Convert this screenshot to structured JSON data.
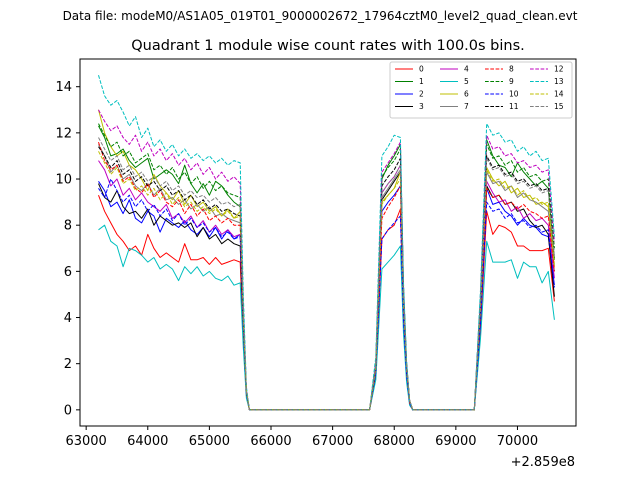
{
  "chart_data": {
    "type": "line",
    "suptitle": "Data file: modeM0/AS1A05_019T01_9000002672_17964cztM0_level2_quad_clean.evt",
    "title": "Quadrant 1 module wise count rates with 100.0s bins.",
    "xlabel": "",
    "ylabel": "",
    "offset_label": "+2.859e8",
    "xlim": [
      62900,
      70950
    ],
    "ylim": [
      -0.7,
      15.2
    ],
    "x_ticks": [
      63000,
      64000,
      65000,
      66000,
      67000,
      68000,
      69000,
      70000
    ],
    "x_tick_labels": [
      "63000",
      "64000",
      "65000",
      "66000",
      "67000",
      "68000",
      "69000",
      "70000"
    ],
    "y_ticks": [
      0,
      2,
      4,
      6,
      8,
      10,
      12,
      14
    ],
    "y_tick_labels": [
      "0",
      "2",
      "4",
      "6",
      "8",
      "10",
      "12",
      "14"
    ],
    "legend": "top-right",
    "x_segments": [
      [
        63200,
        63300,
        63400,
        63500,
        63600,
        63700,
        63800,
        63900,
        64000,
        64100,
        64200,
        64300,
        64400,
        64500,
        64600,
        64700,
        64800,
        64900,
        65000,
        65100,
        65200,
        65300,
        65400,
        65500,
        65550,
        65600,
        65650,
        65700,
        67600,
        67700,
        67800,
        67900,
        68000,
        68100,
        68150,
        68200,
        68250,
        68300,
        69300,
        69400,
        69500,
        69600,
        69700,
        69800,
        69900,
        70000,
        70100,
        70200,
        70300,
        70400,
        70500,
        70600
      ]
    ],
    "series": [
      {
        "name": "0",
        "color": "#ff0000",
        "dash": "solid",
        "values": [
          9.3,
          8.6,
          8.1,
          7.6,
          7.3,
          6.9,
          7.1,
          6.7,
          7.6,
          7.0,
          6.6,
          6.8,
          6.6,
          6.4,
          7.2,
          6.5,
          6.5,
          6.6,
          6.3,
          6.6,
          6.3,
          6.4,
          6.5,
          6.4,
          3.0,
          0.6,
          0.0,
          0.0,
          0.0,
          1.5,
          7.4,
          7.8,
          8.0,
          8.7,
          4.0,
          1.5,
          0.3,
          0.0,
          0.0,
          3.5,
          8.6,
          7.6,
          8.0,
          7.9,
          7.7,
          7.1,
          7.1,
          6.9,
          6.9,
          6.9,
          7.0,
          4.7
        ]
      },
      {
        "name": "1",
        "color": "#008000",
        "dash": "solid",
        "values": [
          12.3,
          11.8,
          11.0,
          11.1,
          11.3,
          10.8,
          10.5,
          10.7,
          10.9,
          10.0,
          10.2,
          10.4,
          10.2,
          9.8,
          10.6,
          9.8,
          9.4,
          9.8,
          9.3,
          9.9,
          9.7,
          9.3,
          9.0,
          8.8,
          4.2,
          0.8,
          0.0,
          0.0,
          0.0,
          2.0,
          10.0,
          10.6,
          11.0,
          11.5,
          5.3,
          2.0,
          0.4,
          0.0,
          0.0,
          4.8,
          11.7,
          11.0,
          10.6,
          10.5,
          10.1,
          10.7,
          10.3,
          10.0,
          9.7,
          9.9,
          9.6,
          6.5
        ]
      },
      {
        "name": "2",
        "color": "#0000ff",
        "dash": "solid",
        "values": [
          9.9,
          9.5,
          8.8,
          9.0,
          8.5,
          9.1,
          8.3,
          8.1,
          8.6,
          8.4,
          7.7,
          8.3,
          8.1,
          7.9,
          8.2,
          7.8,
          7.6,
          7.9,
          7.5,
          7.9,
          7.4,
          7.8,
          7.4,
          7.6,
          3.6,
          0.7,
          0.0,
          0.0,
          0.0,
          1.7,
          8.6,
          9.0,
          9.3,
          9.7,
          4.5,
          1.7,
          0.3,
          0.0,
          0.0,
          4.0,
          9.6,
          8.9,
          9.0,
          8.6,
          8.4,
          8.0,
          8.3,
          8.0,
          7.9,
          7.6,
          7.5,
          5.4
        ]
      },
      {
        "name": "3",
        "color": "#000000",
        "dash": "solid",
        "values": [
          9.8,
          9.2,
          9.0,
          9.5,
          8.8,
          8.5,
          8.6,
          8.3,
          8.7,
          8.0,
          8.4,
          8.2,
          8.0,
          8.1,
          7.9,
          8.1,
          7.5,
          7.9,
          7.4,
          7.6,
          7.2,
          7.4,
          7.2,
          7.1,
          3.4,
          0.7,
          0.0,
          0.0,
          0.0,
          1.6,
          9.1,
          9.5,
          9.9,
          10.3,
          4.8,
          1.8,
          0.4,
          0.0,
          0.0,
          4.1,
          9.7,
          9.2,
          9.3,
          8.9,
          9.0,
          8.6,
          8.7,
          8.2,
          7.9,
          8.0,
          7.6,
          4.9
        ]
      },
      {
        "name": "4",
        "color": "#bf00bf",
        "dash": "solid",
        "values": [
          10.8,
          10.4,
          9.7,
          10.0,
          9.3,
          9.6,
          9.1,
          9.4,
          9.0,
          8.8,
          8.6,
          8.9,
          8.3,
          8.5,
          8.1,
          8.4,
          7.9,
          8.2,
          7.7,
          8.0,
          7.6,
          7.8,
          7.5,
          7.6,
          3.6,
          0.7,
          0.0,
          0.0,
          0.0,
          1.8,
          9.4,
          9.8,
          10.1,
          10.6,
          4.9,
          1.9,
          0.4,
          0.0,
          0.0,
          4.3,
          9.9,
          9.4,
          9.0,
          9.1,
          8.6,
          8.8,
          8.3,
          8.5,
          8.2,
          8.3,
          8.0,
          5.7
        ]
      },
      {
        "name": "5",
        "color": "#00bfbf",
        "dash": "solid",
        "values": [
          7.8,
          8.0,
          7.3,
          7.1,
          6.2,
          7.0,
          6.9,
          6.7,
          6.4,
          6.6,
          6.1,
          6.3,
          6.1,
          5.6,
          6.2,
          5.9,
          6.2,
          5.8,
          6.0,
          5.7,
          5.6,
          5.8,
          5.4,
          5.5,
          2.7,
          0.5,
          0.0,
          0.0,
          0.0,
          1.3,
          6.1,
          6.4,
          6.7,
          7.1,
          3.3,
          1.2,
          0.2,
          0.0,
          0.0,
          3.1,
          7.3,
          6.4,
          6.4,
          6.4,
          6.5,
          5.7,
          6.4,
          6.2,
          6.2,
          5.5,
          6.0,
          3.9
        ]
      },
      {
        "name": "6",
        "color": "#bfbf00",
        "dash": "solid",
        "values": [
          13.0,
          12.0,
          11.4,
          11.0,
          11.2,
          10.6,
          10.4,
          10.0,
          9.5,
          10.2,
          9.7,
          9.4,
          9.1,
          9.5,
          8.9,
          9.3,
          8.8,
          9.0,
          8.6,
          8.8,
          8.4,
          8.7,
          8.3,
          8.6,
          4.0,
          0.8,
          0.0,
          0.0,
          0.0,
          1.9,
          9.0,
          9.3,
          9.6,
          10.3,
          4.7,
          1.8,
          0.4,
          0.0,
          0.0,
          4.6,
          10.5,
          10.0,
          9.7,
          9.9,
          9.4,
          9.6,
          9.2,
          9.3,
          8.9,
          9.0,
          8.8,
          6.2
        ]
      },
      {
        "name": "7",
        "color": "#808080",
        "dash": "solid",
        "values": [
          11.5,
          11.0,
          10.3,
          10.6,
          10.0,
          10.2,
          9.7,
          9.5,
          9.8,
          9.3,
          9.6,
          9.1,
          9.2,
          8.9,
          9.1,
          8.7,
          8.9,
          8.6,
          8.8,
          8.4,
          8.5,
          8.3,
          8.2,
          8.1,
          3.8,
          0.8,
          0.0,
          0.0,
          0.0,
          1.8,
          9.2,
          9.6,
          10.0,
          10.4,
          4.8,
          1.8,
          0.4,
          0.0,
          0.0,
          4.4,
          10.3,
          9.8,
          9.9,
          9.5,
          9.7,
          9.2,
          9.4,
          9.1,
          9.0,
          8.8,
          8.6,
          6.0
        ]
      },
      {
        "name": "8",
        "color": "#ff0000",
        "dash": "dashed",
        "values": [
          11.6,
          10.8,
          10.4,
          10.6,
          9.9,
          10.1,
          9.6,
          9.4,
          9.8,
          9.2,
          9.5,
          9.0,
          8.8,
          9.1,
          8.5,
          8.9,
          8.4,
          8.7,
          8.2,
          8.4,
          8.1,
          8.3,
          8.0,
          8.0,
          3.8,
          0.8,
          0.0,
          0.0,
          0.0,
          1.7,
          8.3,
          8.8,
          9.2,
          9.7,
          4.5,
          1.7,
          0.3,
          0.0,
          0.0,
          4.2,
          9.6,
          9.2,
          9.3,
          8.9,
          9.0,
          8.7,
          8.9,
          8.6,
          8.5,
          8.3,
          8.4,
          6.0
        ]
      },
      {
        "name": "9",
        "color": "#008000",
        "dash": "dashed",
        "values": [
          12.4,
          11.9,
          11.4,
          11.6,
          11.0,
          11.2,
          10.7,
          10.9,
          11.1,
          10.4,
          10.6,
          10.2,
          10.5,
          10.0,
          10.3,
          9.8,
          10.1,
          9.6,
          9.9,
          9.5,
          9.7,
          9.4,
          9.3,
          9.2,
          4.3,
          0.8,
          0.0,
          0.0,
          0.0,
          2.0,
          10.1,
          10.5,
          10.8,
          11.3,
          5.2,
          2.0,
          0.4,
          0.0,
          0.0,
          4.9,
          11.5,
          10.9,
          11.0,
          10.6,
          10.8,
          10.3,
          10.5,
          10.1,
          10.2,
          9.9,
          10.0,
          7.0
        ]
      },
      {
        "name": "10",
        "color": "#0000ff",
        "dash": "dashed",
        "values": [
          9.6,
          9.2,
          10.0,
          9.5,
          9.0,
          9.3,
          8.8,
          9.1,
          8.6,
          8.9,
          8.4,
          8.7,
          8.2,
          8.5,
          8.0,
          8.3,
          7.9,
          8.1,
          7.7,
          7.9,
          7.5,
          7.7,
          7.4,
          7.5,
          3.5,
          0.7,
          0.0,
          0.0,
          0.0,
          1.6,
          7.4,
          7.8,
          8.1,
          8.4,
          3.9,
          1.5,
          0.3,
          0.0,
          0.0,
          3.8,
          9.0,
          8.6,
          8.7,
          8.3,
          8.5,
          8.1,
          8.2,
          7.9,
          8.0,
          7.7,
          7.8,
          5.3
        ]
      },
      {
        "name": "11",
        "color": "#000000",
        "dash": "dashed",
        "values": [
          11.4,
          11.0,
          10.5,
          10.8,
          10.2,
          10.4,
          9.9,
          10.1,
          9.7,
          9.9,
          9.5,
          9.7,
          9.3,
          9.5,
          9.1,
          9.3,
          8.9,
          9.1,
          8.7,
          8.9,
          8.6,
          8.7,
          8.5,
          8.4,
          3.9,
          0.8,
          0.0,
          0.0,
          0.0,
          1.9,
          9.7,
          10.1,
          10.4,
          10.9,
          5.0,
          1.9,
          0.4,
          0.0,
          0.0,
          4.7,
          11.0,
          10.5,
          10.6,
          10.2,
          10.3,
          9.9,
          10.0,
          9.7,
          9.8,
          9.5,
          9.6,
          6.6
        ]
      },
      {
        "name": "12",
        "color": "#bf00bf",
        "dash": "dashed",
        "values": [
          13.0,
          12.5,
          12.1,
          12.3,
          11.8,
          11.5,
          11.9,
          11.2,
          11.6,
          11.0,
          11.3,
          10.8,
          11.1,
          10.6,
          10.9,
          10.4,
          10.7,
          10.2,
          10.5,
          10.0,
          10.3,
          9.9,
          10.1,
          9.8,
          4.6,
          0.9,
          0.0,
          0.0,
          0.0,
          2.1,
          10.3,
          10.7,
          11.1,
          11.6,
          5.4,
          2.0,
          0.4,
          0.0,
          0.0,
          5.0,
          11.9,
          11.3,
          11.4,
          11.0,
          11.1,
          10.7,
          10.8,
          10.5,
          10.6,
          10.3,
          10.4,
          7.3
        ]
      },
      {
        "name": "13",
        "color": "#00bfbf",
        "dash": "dashed",
        "values": [
          14.5,
          13.6,
          13.2,
          13.4,
          12.9,
          12.3,
          12.7,
          11.8,
          12.2,
          11.4,
          11.7,
          11.2,
          11.5,
          11.0,
          11.3,
          10.9,
          11.1,
          10.8,
          11.0,
          10.7,
          10.9,
          10.6,
          10.8,
          10.7,
          5.0,
          1.0,
          0.0,
          0.0,
          0.0,
          2.3,
          11.0,
          11.4,
          11.9,
          11.8,
          5.5,
          2.1,
          0.4,
          0.0,
          0.0,
          5.2,
          12.4,
          11.9,
          12.0,
          11.6,
          11.7,
          11.2,
          11.4,
          11.0,
          11.2,
          10.8,
          10.9,
          7.5
        ]
      },
      {
        "name": "14",
        "color": "#bfbf00",
        "dash": "dashed",
        "values": [
          11.2,
          10.7,
          10.2,
          10.5,
          9.8,
          10.0,
          9.5,
          9.7,
          9.3,
          9.6,
          9.1,
          9.4,
          8.9,
          9.2,
          8.8,
          9.0,
          8.6,
          8.8,
          8.5,
          8.7,
          8.4,
          8.6,
          8.3,
          8.4,
          3.9,
          0.8,
          0.0,
          0.0,
          0.0,
          1.8,
          8.9,
          9.3,
          9.6,
          10.0,
          4.6,
          1.8,
          0.4,
          0.0,
          0.0,
          4.4,
          10.4,
          9.9,
          10.0,
          9.6,
          9.7,
          9.3,
          9.5,
          9.1,
          9.2,
          8.9,
          9.0,
          6.3
        ]
      },
      {
        "name": "15",
        "color": "#808080",
        "dash": "dashed",
        "values": [
          11.8,
          11.3,
          10.8,
          11.0,
          10.4,
          10.6,
          10.1,
          10.3,
          9.9,
          10.1,
          9.7,
          9.9,
          9.5,
          9.7,
          9.3,
          9.5,
          9.2,
          9.3,
          9.0,
          9.2,
          8.9,
          9.0,
          8.8,
          8.9,
          4.1,
          0.8,
          0.0,
          0.0,
          0.0,
          1.9,
          9.4,
          9.8,
          10.1,
          10.6,
          4.9,
          1.9,
          0.4,
          0.0,
          0.0,
          4.6,
          10.9,
          10.4,
          10.5,
          10.1,
          10.2,
          9.8,
          9.9,
          9.6,
          9.7,
          9.4,
          9.5,
          6.6
        ]
      }
    ]
  }
}
